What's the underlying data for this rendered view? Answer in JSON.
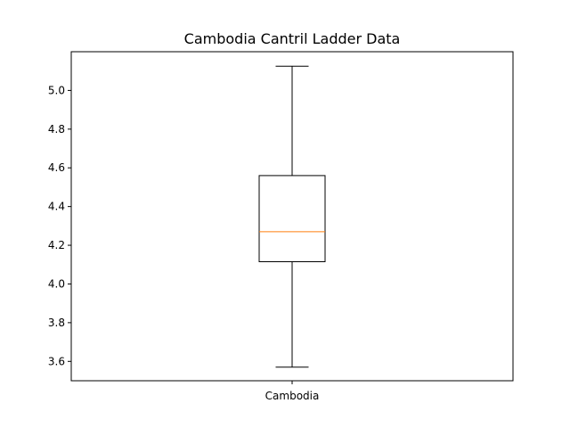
{
  "chart_data": {
    "type": "box",
    "title": "Cambodia Cantril Ladder Data",
    "xlabel": "",
    "ylabel": "",
    "categories": [
      "Cambodia"
    ],
    "boxes": [
      {
        "category": "Cambodia",
        "whisker_low": 3.57,
        "q1": 4.115,
        "median": 4.27,
        "q3": 4.56,
        "whisker_high": 5.125
      }
    ],
    "ylim": [
      3.5,
      5.2
    ],
    "yticks": [
      3.6,
      3.8,
      4.0,
      4.2,
      4.4,
      4.6,
      4.8,
      5.0
    ],
    "ytick_labels": [
      "3.6",
      "3.8",
      "4.0",
      "4.2",
      "4.4",
      "4.6",
      "4.8",
      "5.0"
    ],
    "grid": false,
    "colors": {
      "box": "#000000",
      "median": "#ff7f0e",
      "whisker": "#000000",
      "axes": "#000000"
    }
  }
}
